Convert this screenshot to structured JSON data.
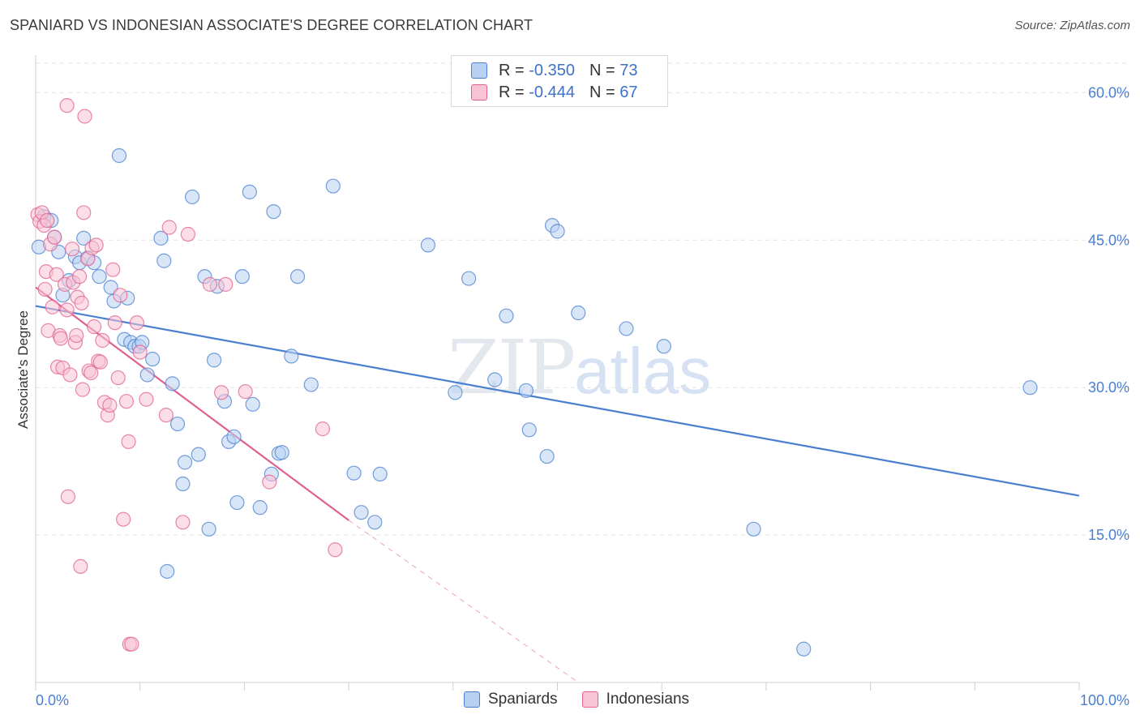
{
  "title": "SPANIARD VS INDONESIAN ASSOCIATE'S DEGREE CORRELATION CHART",
  "source": "Source: ZipAtlas.com",
  "watermark": {
    "zip": "ZIP",
    "atlas": "atlas"
  },
  "legend": {
    "r_label": "R =",
    "n_label": "N =",
    "rows": [
      {
        "r": "-0.350",
        "n": "73",
        "color": "#4a7fd0",
        "fill": "#b8d1f3"
      },
      {
        "r": "-0.444",
        "n": "67",
        "color": "#e0608f",
        "fill": "#f8c3d4"
      }
    ]
  },
  "bottom_legend": [
    "Spaniards",
    "Indonesians"
  ],
  "chart_data": {
    "type": "scatter",
    "title": "SPANIARD VS INDONESIAN ASSOCIATE'S DEGREE CORRELATION CHART",
    "xlabel": "",
    "ylabel": "Associate's Degree",
    "xlim": [
      0,
      100
    ],
    "ylim": [
      0,
      63
    ],
    "y_ticks": [
      15,
      30,
      45,
      60
    ],
    "y_tick_labels": [
      "15.0%",
      "30.0%",
      "45.0%",
      "60.0%"
    ],
    "x_tick_labels": [
      "0.0%",
      "100.0%"
    ],
    "series": [
      {
        "name": "Spaniards",
        "color": "#4a7fd0",
        "fill": "#b8d1f3",
        "trend": {
          "x0": 0,
          "y0": 38.3,
          "x1": 100,
          "y1": 19.0
        },
        "points": [
          [
            0.3,
            44.3
          ],
          [
            0.8,
            47.4
          ],
          [
            1.5,
            47.0
          ],
          [
            1.8,
            45.3
          ],
          [
            2.2,
            43.8
          ],
          [
            2.6,
            39.4
          ],
          [
            3.2,
            40.9
          ],
          [
            3.8,
            43.3
          ],
          [
            4.2,
            42.7
          ],
          [
            4.6,
            45.2
          ],
          [
            5.0,
            43.2
          ],
          [
            5.6,
            42.7
          ],
          [
            6.1,
            41.3
          ],
          [
            7.2,
            40.2
          ],
          [
            7.5,
            38.8
          ],
          [
            8.0,
            53.6
          ],
          [
            8.5,
            34.9
          ],
          [
            8.8,
            39.1
          ],
          [
            9.1,
            34.6
          ],
          [
            9.5,
            34.2
          ],
          [
            9.9,
            34.2
          ],
          [
            10.2,
            34.6
          ],
          [
            10.7,
            31.3
          ],
          [
            11.2,
            32.9
          ],
          [
            12.0,
            45.2
          ],
          [
            12.3,
            42.9
          ],
          [
            12.6,
            11.3
          ],
          [
            13.1,
            30.4
          ],
          [
            13.6,
            26.3
          ],
          [
            14.1,
            20.2
          ],
          [
            14.3,
            22.4
          ],
          [
            15.0,
            49.4
          ],
          [
            15.6,
            23.2
          ],
          [
            16.2,
            41.3
          ],
          [
            16.6,
            15.6
          ],
          [
            17.1,
            32.8
          ],
          [
            17.4,
            40.3
          ],
          [
            18.1,
            28.6
          ],
          [
            18.5,
            24.5
          ],
          [
            19.0,
            25.0
          ],
          [
            19.3,
            18.3
          ],
          [
            19.8,
            41.3
          ],
          [
            20.5,
            49.9
          ],
          [
            20.8,
            28.3
          ],
          [
            21.5,
            17.8
          ],
          [
            22.6,
            21.2
          ],
          [
            22.8,
            47.9
          ],
          [
            23.3,
            23.3
          ],
          [
            23.6,
            23.4
          ],
          [
            24.5,
            33.2
          ],
          [
            25.1,
            41.3
          ],
          [
            26.4,
            30.3
          ],
          [
            28.5,
            50.5
          ],
          [
            30.5,
            21.3
          ],
          [
            31.2,
            17.3
          ],
          [
            32.5,
            16.3
          ],
          [
            33.0,
            21.2
          ],
          [
            37.6,
            44.5
          ],
          [
            40.2,
            29.5
          ],
          [
            41.5,
            41.1
          ],
          [
            44.0,
            30.8
          ],
          [
            45.1,
            37.3
          ],
          [
            47.0,
            29.7
          ],
          [
            47.3,
            25.7
          ],
          [
            49.0,
            23.0
          ],
          [
            49.5,
            46.5
          ],
          [
            50.0,
            45.9
          ],
          [
            52.0,
            37.6
          ],
          [
            56.6,
            36.0
          ],
          [
            60.2,
            34.2
          ],
          [
            68.8,
            15.6
          ],
          [
            73.6,
            3.4
          ],
          [
            95.3,
            30.0
          ]
        ]
      },
      {
        "name": "Indonesians",
        "color": "#e0608f",
        "fill": "#f8c3d4",
        "trend": {
          "x0": 0,
          "y0": 40.2,
          "x1": 30,
          "y1": 16.5,
          "dash_to_x": 52,
          "dash_to_y": 0
        },
        "points": [
          [
            0.2,
            47.6
          ],
          [
            0.4,
            46.9
          ],
          [
            0.6,
            47.8
          ],
          [
            0.9,
            40.0
          ],
          [
            1.0,
            41.8
          ],
          [
            1.2,
            35.8
          ],
          [
            1.4,
            44.6
          ],
          [
            1.6,
            38.2
          ],
          [
            1.8,
            45.3
          ],
          [
            2.0,
            41.5
          ],
          [
            2.1,
            32.1
          ],
          [
            2.3,
            35.3
          ],
          [
            2.4,
            35.0
          ],
          [
            2.6,
            32.0
          ],
          [
            2.8,
            40.5
          ],
          [
            3.0,
            37.9
          ],
          [
            3.0,
            58.7
          ],
          [
            3.1,
            18.9
          ],
          [
            3.3,
            31.3
          ],
          [
            3.5,
            44.1
          ],
          [
            3.6,
            40.7
          ],
          [
            3.8,
            34.6
          ],
          [
            3.9,
            35.3
          ],
          [
            4.0,
            39.2
          ],
          [
            4.2,
            41.3
          ],
          [
            4.3,
            11.8
          ],
          [
            4.4,
            38.6
          ],
          [
            4.5,
            29.8
          ],
          [
            4.6,
            47.8
          ],
          [
            4.7,
            57.6
          ],
          [
            5.0,
            43.1
          ],
          [
            5.1,
            31.7
          ],
          [
            5.3,
            31.5
          ],
          [
            5.4,
            44.2
          ],
          [
            5.6,
            36.2
          ],
          [
            5.8,
            44.5
          ],
          [
            6.0,
            32.7
          ],
          [
            6.2,
            32.6
          ],
          [
            6.4,
            34.8
          ],
          [
            6.6,
            28.5
          ],
          [
            6.9,
            27.2
          ],
          [
            7.1,
            28.2
          ],
          [
            7.4,
            42.0
          ],
          [
            7.6,
            36.6
          ],
          [
            7.9,
            31.0
          ],
          [
            8.1,
            39.4
          ],
          [
            8.4,
            16.6
          ],
          [
            8.7,
            28.6
          ],
          [
            8.9,
            24.5
          ],
          [
            9.0,
            3.9
          ],
          [
            9.2,
            3.9
          ],
          [
            9.7,
            36.6
          ],
          [
            10.0,
            33.6
          ],
          [
            10.6,
            28.8
          ],
          [
            12.5,
            27.2
          ],
          [
            12.8,
            46.3
          ],
          [
            14.1,
            16.3
          ],
          [
            14.6,
            45.6
          ],
          [
            16.7,
            40.5
          ],
          [
            17.8,
            29.5
          ],
          [
            18.2,
            40.5
          ],
          [
            20.1,
            29.6
          ],
          [
            22.4,
            20.4
          ],
          [
            27.5,
            25.8
          ],
          [
            28.7,
            13.5
          ],
          [
            0.8,
            46.5
          ],
          [
            1.1,
            47.0
          ]
        ]
      }
    ]
  }
}
